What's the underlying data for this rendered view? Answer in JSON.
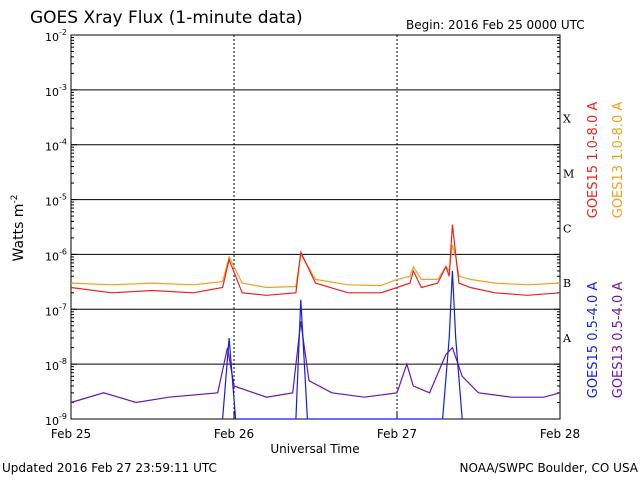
{
  "chart_data": {
    "type": "line",
    "title": "GOES Xray Flux (1-minute data)",
    "begin_label": "Begin:  2016 Feb 25 0000 UTC",
    "xlabel": "Universal Time",
    "ylabel_base": "Watts m",
    "ylabel_exp": "-2",
    "y_scale": "log",
    "ylim": [
      1e-09,
      0.01
    ],
    "y_ticks": [
      {
        "base": "10",
        "exp": "-2",
        "value": 0.01
      },
      {
        "base": "10",
        "exp": "-3",
        "value": 0.001
      },
      {
        "base": "10",
        "exp": "-4",
        "value": 0.0001
      },
      {
        "base": "10",
        "exp": "-5",
        "value": 1e-05
      },
      {
        "base": "10",
        "exp": "-6",
        "value": 1e-06
      },
      {
        "base": "10",
        "exp": "-7",
        "value": 1e-07
      },
      {
        "base": "10",
        "exp": "-8",
        "value": 1e-08
      },
      {
        "base": "10",
        "exp": "-9",
        "value": 1e-09
      }
    ],
    "x_ticks": [
      "Feb 25",
      "Feb 26",
      "Feb 27",
      "Feb 28"
    ],
    "x_range_days": [
      0,
      3
    ],
    "flare_classes": [
      {
        "label": "X",
        "value": 0.0003
      },
      {
        "label": "M",
        "value": 3e-05
      },
      {
        "label": "C",
        "value": 3e-06
      },
      {
        "label": "B",
        "value": 3e-07
      },
      {
        "label": "A",
        "value": 3e-08
      }
    ],
    "legend_position": "right",
    "series": [
      {
        "name": "GOES15 1.0-8.0 A",
        "color": "#e8231f",
        "x": [
          0.0,
          0.25,
          0.5,
          0.75,
          0.93,
          0.97,
          1.05,
          1.2,
          1.38,
          1.41,
          1.5,
          1.7,
          1.9,
          2.0,
          2.08,
          2.1,
          2.15,
          2.25,
          2.3,
          2.32,
          2.34,
          2.36,
          2.38,
          2.45,
          2.6,
          2.8,
          3.0
        ],
        "y": [
          2.5e-07,
          2e-07,
          2.2e-07,
          2e-07,
          2.5e-07,
          8e-07,
          2e-07,
          1.8e-07,
          2e-07,
          1.1e-06,
          3e-07,
          2e-07,
          2e-07,
          2.5e-07,
          3e-07,
          5e-07,
          2.5e-07,
          3e-07,
          6e-07,
          4e-07,
          3.5e-06,
          1e-06,
          3e-07,
          2.5e-07,
          2e-07,
          1.8e-07,
          2e-07
        ]
      },
      {
        "name": "GOES13 1.0-8.0 A",
        "color": "#f0a020",
        "x": [
          0.0,
          0.25,
          0.5,
          0.75,
          0.93,
          0.97,
          1.05,
          1.2,
          1.38,
          1.41,
          1.5,
          1.7,
          1.9,
          2.0,
          2.08,
          2.1,
          2.15,
          2.25,
          2.3,
          2.32,
          2.34,
          2.36,
          2.38,
          2.45,
          2.6,
          2.8,
          3.0
        ],
        "y": [
          3e-07,
          2.8e-07,
          3e-07,
          2.8e-07,
          3.2e-07,
          9e-07,
          3e-07,
          2.5e-07,
          2.6e-07,
          1e-06,
          3.5e-07,
          2.8e-07,
          2.7e-07,
          3.5e-07,
          4e-07,
          6e-07,
          3.5e-07,
          3.5e-07,
          6e-07,
          5e-07,
          1.5e-06,
          9e-07,
          4e-07,
          3.5e-07,
          3e-07,
          2.8e-07,
          3e-07
        ]
      },
      {
        "name": "GOES15 0.5-4.0 A",
        "color": "#1020e0",
        "x": [
          0.93,
          0.97,
          1.01,
          1.38,
          1.41,
          1.45,
          2.28,
          2.32,
          2.34,
          2.36,
          2.4
        ],
        "y": [
          1e-09,
          3e-08,
          1e-09,
          1e-09,
          1.5e-07,
          1e-09,
          1e-09,
          3e-08,
          5e-07,
          3e-08,
          1e-09
        ]
      },
      {
        "name": "GOES13 0.5-4.0 A",
        "color": "#6a14b0",
        "x": [
          0.0,
          0.2,
          0.4,
          0.6,
          0.9,
          0.96,
          1.0,
          1.2,
          1.36,
          1.41,
          1.46,
          1.6,
          1.8,
          2.0,
          2.06,
          2.1,
          2.2,
          2.3,
          2.34,
          2.4,
          2.5,
          2.7,
          2.9,
          3.0
        ],
        "y": [
          2e-09,
          3e-09,
          2e-09,
          2.5e-09,
          3e-09,
          2e-08,
          4e-09,
          2.5e-09,
          3e-09,
          6e-08,
          5e-09,
          3e-09,
          2.5e-09,
          3e-09,
          1e-08,
          4e-09,
          3e-09,
          1.5e-08,
          2e-08,
          6e-09,
          3e-09,
          2.5e-09,
          2.5e-09,
          3e-09
        ]
      }
    ]
  },
  "footer": {
    "updated": "Updated 2016 Feb 27 23:59:11 UTC",
    "credit": "NOAA/SWPC Boulder, CO USA"
  }
}
